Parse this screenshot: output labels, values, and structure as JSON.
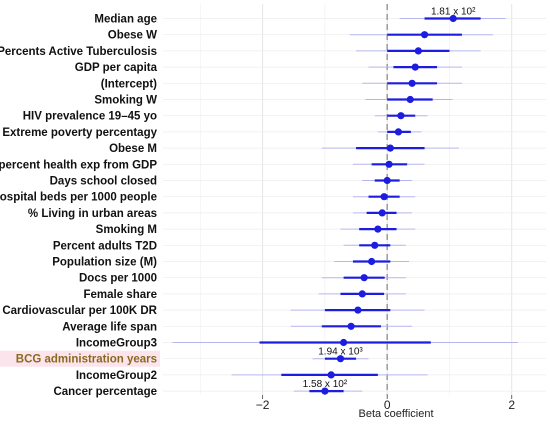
{
  "chart_data": {
    "type": "forest",
    "xlabel": "Beta coefficient",
    "xlim": [
      -3.6,
      2.55
    ],
    "xticks": [
      -2,
      0,
      2
    ],
    "grid": true,
    "reference_line": 0,
    "colors": {
      "point": "#1d1de0",
      "ci_inner": "#1d1de0",
      "ci_outer": "#b6b6ee",
      "ref_line": "#a0a0a0",
      "highlight_label": "#8a6a1f",
      "highlight_bg": "#fbe4ec"
    },
    "rows": [
      {
        "label": "Median age",
        "estimate": 1.06,
        "ci_inner": [
          0.6,
          1.5
        ],
        "ci_outer": [
          0.2,
          1.9
        ],
        "annotation": "1.81 x 10²"
      },
      {
        "label": "Obese W",
        "estimate": 0.6,
        "ci_inner": [
          0.0,
          1.2
        ],
        "ci_outer": [
          -0.6,
          1.7
        ]
      },
      {
        "label": "Percents Active Tuberculosis",
        "estimate": 0.5,
        "ci_inner": [
          0.0,
          1.0
        ],
        "ci_outer": [
          -0.5,
          1.5
        ]
      },
      {
        "label": "GDP per capita",
        "estimate": 0.45,
        "ci_inner": [
          0.1,
          0.8
        ],
        "ci_outer": [
          -0.3,
          1.2
        ]
      },
      {
        "label": "(Intercept)",
        "estimate": 0.4,
        "ci_inner": [
          0.0,
          0.8
        ],
        "ci_outer": [
          -0.4,
          1.2
        ]
      },
      {
        "label": "Smoking W",
        "estimate": 0.37,
        "ci_inner": [
          0.0,
          0.73
        ],
        "ci_outer": [
          -0.35,
          1.05
        ]
      },
      {
        "label": "HIV prevalence 19–45 yo",
        "estimate": 0.22,
        "ci_inner": [
          0.0,
          0.45
        ],
        "ci_outer": [
          -0.2,
          0.65
        ]
      },
      {
        "label": "Extreme poverty percentagy",
        "estimate": 0.18,
        "ci_inner": [
          0.0,
          0.38
        ],
        "ci_outer": [
          -0.15,
          0.55
        ]
      },
      {
        "label": "Obese M",
        "estimate": 0.05,
        "ci_inner": [
          -0.5,
          0.6
        ],
        "ci_outer": [
          -1.05,
          1.15
        ]
      },
      {
        "label": "percent health exp from GDP",
        "estimate": 0.03,
        "ci_inner": [
          -0.25,
          0.32
        ],
        "ci_outer": [
          -0.55,
          0.6
        ]
      },
      {
        "label": "Days school closed",
        "estimate": 0.0,
        "ci_inner": [
          -0.2,
          0.2
        ],
        "ci_outer": [
          -0.4,
          0.4
        ]
      },
      {
        "label": "Hospital beds per 1000 people",
        "estimate": -0.05,
        "ci_inner": [
          -0.3,
          0.2
        ],
        "ci_outer": [
          -0.55,
          0.45
        ]
      },
      {
        "label": "% Living in urban areas",
        "estimate": -0.08,
        "ci_inner": [
          -0.33,
          0.15
        ],
        "ci_outer": [
          -0.55,
          0.4
        ]
      },
      {
        "label": "Smoking M",
        "estimate": -0.15,
        "ci_inner": [
          -0.45,
          0.15
        ],
        "ci_outer": [
          -0.75,
          0.45
        ]
      },
      {
        "label": "Percent adults T2D",
        "estimate": -0.2,
        "ci_inner": [
          -0.45,
          0.05
        ],
        "ci_outer": [
          -0.7,
          0.3
        ]
      },
      {
        "label": "Population size (M)",
        "estimate": -0.25,
        "ci_inner": [
          -0.55,
          0.05
        ],
        "ci_outer": [
          -0.85,
          0.35
        ]
      },
      {
        "label": "Docs per 1000",
        "estimate": -0.37,
        "ci_inner": [
          -0.7,
          -0.04
        ],
        "ci_outer": [
          -1.05,
          0.3
        ]
      },
      {
        "label": "Female share",
        "estimate": -0.4,
        "ci_inner": [
          -0.75,
          -0.05
        ],
        "ci_outer": [
          -1.1,
          0.3
        ]
      },
      {
        "label": "Cardiovascular per 100K DR",
        "estimate": -0.47,
        "ci_inner": [
          -1.0,
          0.05
        ],
        "ci_outer": [
          -1.55,
          0.6
        ]
      },
      {
        "label": "Average life span",
        "estimate": -0.58,
        "ci_inner": [
          -1.05,
          -0.1
        ],
        "ci_outer": [
          -1.55,
          0.4
        ]
      },
      {
        "label": "IncomeGroup3",
        "estimate": -0.7,
        "ci_inner": [
          -2.05,
          0.7
        ],
        "ci_outer": [
          -3.45,
          2.1
        ]
      },
      {
        "label": "BCG administration years",
        "estimate": -0.75,
        "ci_inner": [
          -1.0,
          -0.5
        ],
        "ci_outer": [
          -1.2,
          -0.3
        ],
        "annotation": "1.94 x 10³",
        "highlight": true
      },
      {
        "label": "IncomeGroup2",
        "estimate": -0.9,
        "ci_inner": [
          -1.7,
          -0.15
        ],
        "ci_outer": [
          -2.5,
          0.65
        ]
      },
      {
        "label": "Cancer percentage",
        "estimate": -1.0,
        "ci_inner": [
          -1.25,
          -0.7
        ],
        "ci_outer": [
          -1.5,
          -0.4
        ],
        "annotation": "1.58 x 10²"
      }
    ]
  }
}
